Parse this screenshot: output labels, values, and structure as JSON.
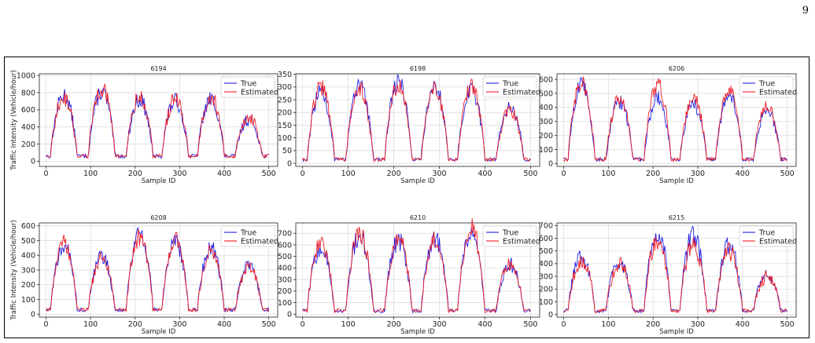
{
  "page": {
    "number": "9"
  },
  "colors": {
    "true_series": "#1f1fe6",
    "estimated_series": "#ee1c24",
    "grid": "#d9d9d9"
  },
  "chart_data": [
    {
      "type": "line",
      "title": "6194",
      "xlabel": "Sample ID",
      "ylabel": "Traffic Intensity (Vehicle/hour)",
      "xlim": [
        -15,
        520
      ],
      "ylim": [
        -60,
        1020
      ],
      "xticks": [
        0,
        100,
        200,
        300,
        400,
        500
      ],
      "yticks": [
        0,
        200,
        400,
        600,
        800,
        1000
      ],
      "legend": "top-right",
      "grid": true,
      "peaks": [
        770,
        810,
        720,
        700,
        720,
        490
      ],
      "estimated_peaks": [
        750,
        860,
        740,
        720,
        760,
        520
      ],
      "series": [
        {
          "name": "True",
          "color": "#1f1fe6"
        },
        {
          "name": "Estimated",
          "color": "#ee1c24"
        }
      ]
    },
    {
      "type": "line",
      "title": "6198",
      "xlabel": "Sample ID",
      "ylabel": "",
      "xlim": [
        -15,
        520
      ],
      "ylim": [
        -12,
        352
      ],
      "xticks": [
        0,
        100,
        200,
        300,
        400,
        500
      ],
      "yticks": [
        0,
        50,
        100,
        150,
        200,
        250,
        300,
        350
      ],
      "legend": "top-right",
      "grid": true,
      "peaks": [
        280,
        300,
        320,
        300,
        290,
        230
      ],
      "estimated_peaks": [
        300,
        290,
        310,
        290,
        300,
        210
      ],
      "series": [
        {
          "name": "True",
          "color": "#1f1fe6"
        },
        {
          "name": "Estimated",
          "color": "#ee1c24"
        }
      ]
    },
    {
      "type": "line",
      "title": "6206",
      "xlabel": "Sample ID",
      "ylabel": "",
      "xlim": [
        -15,
        520
      ],
      "ylim": [
        -20,
        640
      ],
      "xticks": [
        0,
        100,
        200,
        300,
        400,
        500
      ],
      "yticks": [
        0,
        100,
        200,
        300,
        400,
        500,
        600
      ],
      "legend": "top-right",
      "grid": true,
      "peaks": [
        560,
        440,
        470,
        420,
        480,
        380
      ],
      "estimated_peaks": [
        580,
        460,
        560,
        470,
        520,
        420
      ],
      "series": [
        {
          "name": "True",
          "color": "#1f1fe6"
        },
        {
          "name": "Estimated",
          "color": "#ee1c24"
        }
      ]
    },
    {
      "type": "line",
      "title": "6208",
      "xlabel": "Sample ID",
      "ylabel": "Traffic Intensity (Vehicle/hour)",
      "xlim": [
        -15,
        520
      ],
      "ylim": [
        -20,
        620
      ],
      "xticks": [
        0,
        100,
        200,
        300,
        400,
        500
      ],
      "yticks": [
        0,
        100,
        200,
        300,
        400,
        500,
        600
      ],
      "legend": "top-right",
      "grid": true,
      "peaks": [
        470,
        390,
        560,
        490,
        450,
        330
      ],
      "estimated_peaks": [
        480,
        380,
        520,
        500,
        430,
        320
      ],
      "series": [
        {
          "name": "True",
          "color": "#1f1fe6"
        },
        {
          "name": "Estimated",
          "color": "#ee1c24"
        }
      ]
    },
    {
      "type": "line",
      "title": "6210",
      "xlabel": "Sample ID",
      "ylabel": "",
      "xlim": [
        -15,
        520
      ],
      "ylim": [
        -25,
        790
      ],
      "xticks": [
        0,
        100,
        200,
        300,
        400,
        500
      ],
      "yticks": [
        0,
        100,
        200,
        300,
        400,
        500,
        600,
        700
      ],
      "legend": "top-right",
      "grid": true,
      "peaks": [
        560,
        680,
        640,
        650,
        690,
        430
      ],
      "estimated_peaks": [
        620,
        700,
        660,
        640,
        750,
        440
      ],
      "series": [
        {
          "name": "True",
          "color": "#1f1fe6"
        },
        {
          "name": "Estimated",
          "color": "#ee1c24"
        }
      ]
    },
    {
      "type": "line",
      "title": "6215",
      "xlabel": "Sample ID",
      "ylabel": "",
      "xlim": [
        -15,
        520
      ],
      "ylim": [
        -20,
        720
      ],
      "xticks": [
        0,
        100,
        200,
        300,
        400,
        500
      ],
      "yticks": [
        0,
        100,
        200,
        300,
        400,
        500,
        600,
        700
      ],
      "legend": "top-right",
      "grid": true,
      "peaks": [
        460,
        420,
        650,
        620,
        540,
        320
      ],
      "estimated_peaks": [
        430,
        410,
        600,
        560,
        500,
        300
      ],
      "series": [
        {
          "name": "True",
          "color": "#1f1fe6"
        },
        {
          "name": "Estimated",
          "color": "#ee1c24"
        }
      ]
    }
  ]
}
